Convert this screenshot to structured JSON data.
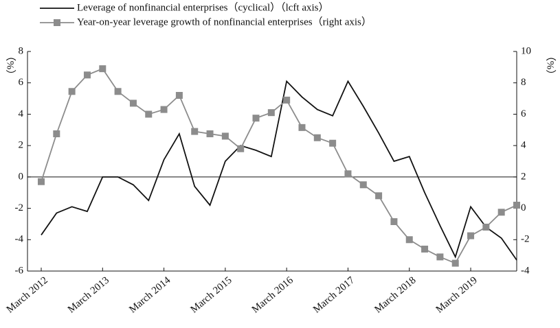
{
  "chart_data": {
    "type": "line",
    "ylabel": "（%）",
    "y2label": "（%）",
    "categories": [
      "March 2012",
      null,
      null,
      null,
      "March 2013",
      null,
      null,
      null,
      "March 2014",
      null,
      null,
      null,
      "March 2015",
      null,
      null,
      null,
      "March 2016",
      null,
      null,
      null,
      "March 2017",
      null,
      null,
      null,
      "March 2018",
      null,
      null,
      null,
      "March 2019",
      null,
      null,
      null
    ],
    "series": [
      {
        "name": "Leverage of nonfinancial enterprises（cyclical）（lcft axis）",
        "color": "#111111",
        "marker": "none",
        "axis": "y",
        "values": [
          -3.7,
          -2.3,
          -1.9,
          -2.2,
          0,
          0,
          -0.5,
          -1.5,
          1.1,
          2.75,
          -0.6,
          -1.8,
          1.0,
          2.0,
          1.7,
          1.3,
          6.1,
          5.1,
          4.3,
          3.9,
          6.1,
          4.5,
          2.8,
          1.0,
          1.3,
          -1.0,
          -3.1,
          -5.1,
          -1.9,
          -3.2,
          -3.9,
          -5.3
        ]
      },
      {
        "name": "Year-on-year leverage growth of nonfinancial enterprises（right axis）",
        "color": "#8c8c8c",
        "marker": "square",
        "axis": "y2",
        "values": [
          1.7,
          4.75,
          7.45,
          8.5,
          8.9,
          7.45,
          6.7,
          6.0,
          6.3,
          7.2,
          4.9,
          4.75,
          4.6,
          3.8,
          5.75,
          6.1,
          6.9,
          5.15,
          4.5,
          4.15,
          2.2,
          1.5,
          0.8,
          -0.85,
          -2.0,
          -2.6,
          -3.1,
          -3.5,
          -1.75,
          -1.2,
          -0.25,
          0.2
        ]
      }
    ],
    "ylim": [
      -6,
      8
    ],
    "yticks": [
      -6,
      -4,
      -2,
      0,
      2,
      4,
      6,
      8
    ],
    "y2lim": [
      -4,
      10
    ],
    "y2ticks": [
      -4,
      -2,
      0,
      2,
      4,
      6,
      8,
      10
    ],
    "legend": "top-left"
  }
}
